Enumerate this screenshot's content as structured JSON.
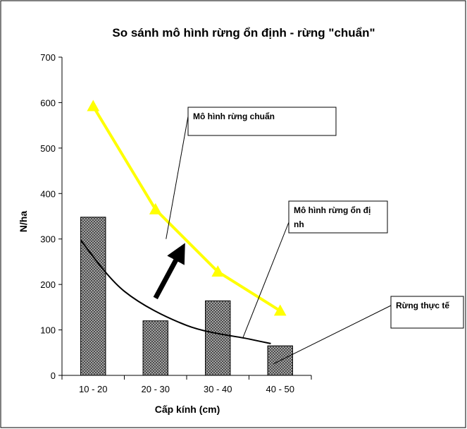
{
  "chart_data": {
    "type": "bar",
    "title": "So sánh mô hình rừng ổn định  - rừng \"chuẩn\"",
    "xlabel": "Cấp kính (cm)",
    "ylabel": "N/ha",
    "categories": [
      "10 - 20",
      "20 - 30",
      "30 - 40",
      "40 - 50"
    ],
    "ylim": [
      0,
      700
    ],
    "yticks": [
      0,
      100,
      200,
      300,
      400,
      500,
      600,
      700
    ],
    "grid": false,
    "series": [
      {
        "name": "Rừng thực tế",
        "kind": "bar",
        "values": [
          348,
          120,
          164,
          65
        ],
        "color": "#8a8a8a",
        "pattern": "crosshatch"
      },
      {
        "name": "Mô hình rừng chuẩn",
        "kind": "line",
        "marker": "triangle",
        "values": [
          592,
          365,
          228,
          142
        ],
        "color": "#ffff00"
      },
      {
        "name": "Mô hình rừng ổn định",
        "kind": "curve",
        "x": [
          0.3,
          1.0,
          2.0,
          3.0,
          3.35
        ],
        "values": [
          297,
          185,
          110,
          80,
          70
        ],
        "color": "#000000"
      }
    ],
    "annotations": [
      {
        "type": "arrow",
        "from": [
          1.5,
          170
        ],
        "to": [
          1.9,
          272
        ]
      }
    ]
  }
}
